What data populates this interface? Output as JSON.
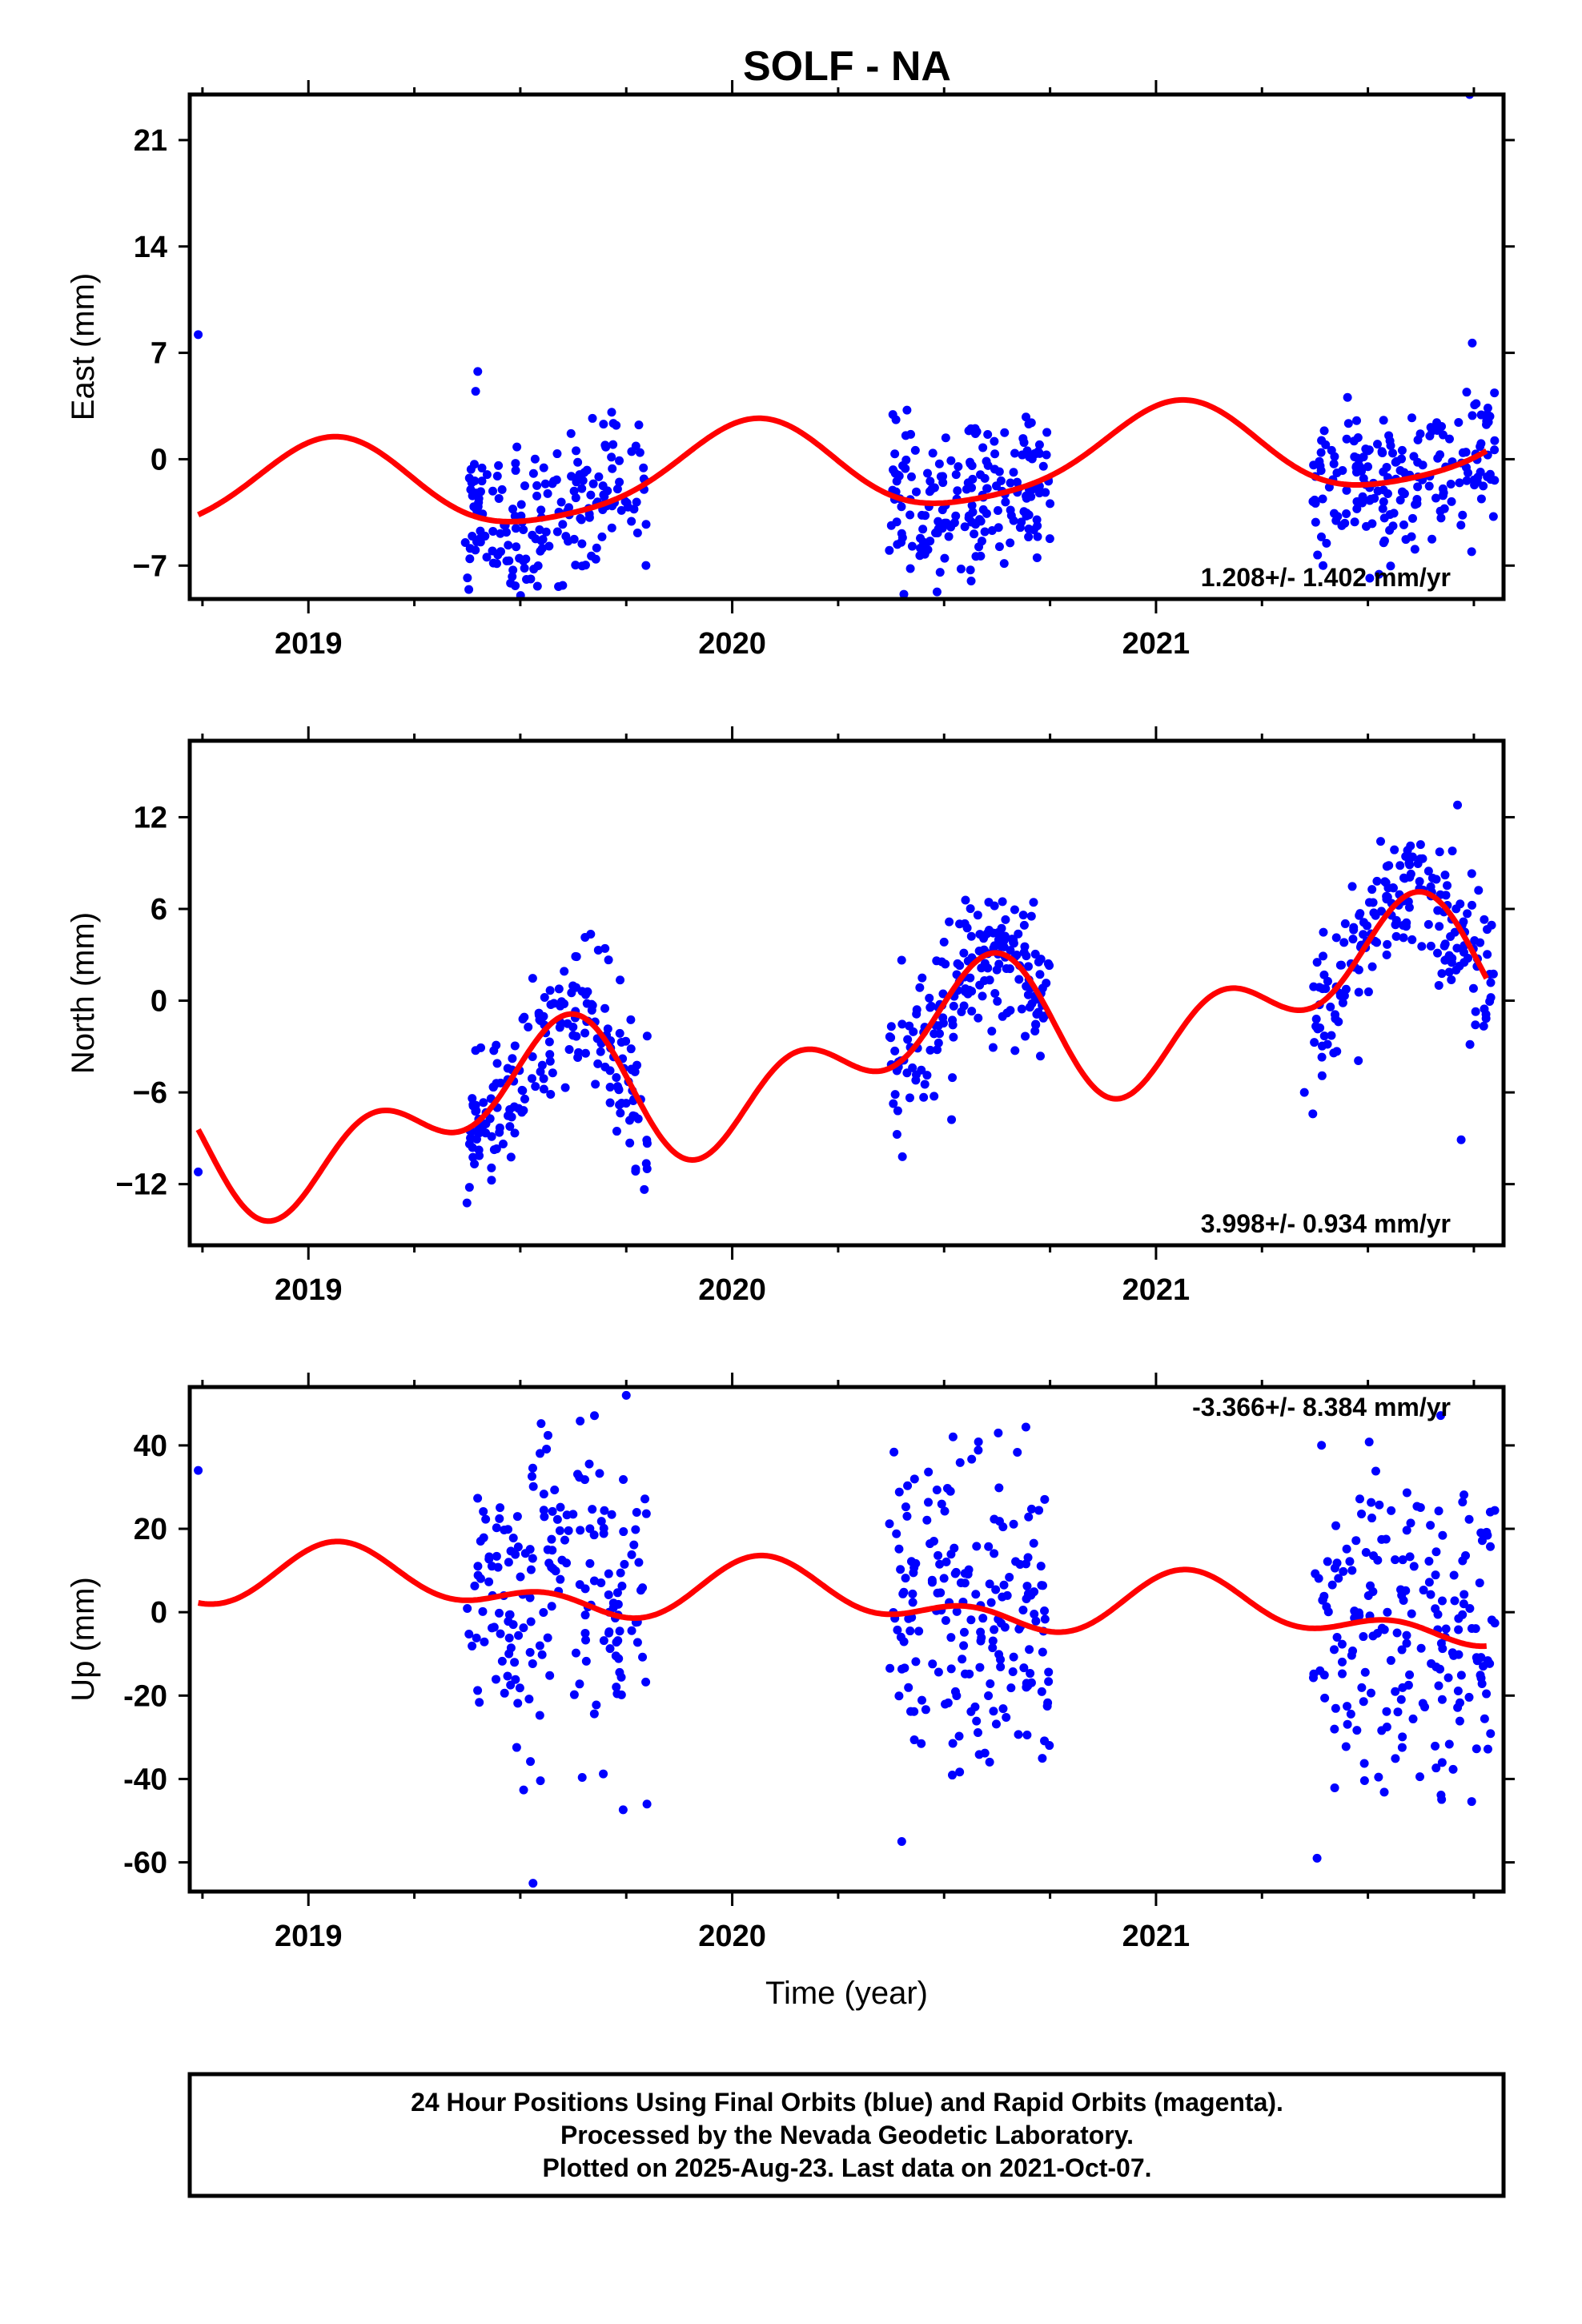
{
  "title": "SOLF - NA",
  "chart_data": [
    {
      "type": "scatter",
      "ylabel": "East (mm)",
      "xlabel": "",
      "xlim": [
        2018.72,
        2021.82
      ],
      "ylim": [
        -9.2,
        24
      ],
      "yticks": [
        -7,
        0,
        7,
        14,
        21
      ],
      "ytick_labels": [
        "−7",
        "0",
        "7",
        "14",
        "21"
      ],
      "xticks": [
        2019,
        2020,
        2021
      ],
      "xtick_labels": [
        "2019",
        "2020",
        "2021"
      ],
      "rate": "1.208+/- 1.402 mm/yr",
      "rate_position": "bottom-right",
      "series": [
        {
          "name": "Final Orbits",
          "color": "#0000ff",
          "style": "points"
        },
        {
          "name": "model",
          "color": "#ff0000",
          "style": "line"
        }
      ],
      "model": {
        "offset": -0.9,
        "rate": 1.208,
        "t0": 2020.0,
        "annual_amp": 3.0,
        "annual_phase": 1.3,
        "semiannual_amp": 0.55,
        "semiannual_phase": 0.6
      },
      "points": {
        "outliers": [
          [
            2018.74,
            8.2
          ],
          [
            2021.74,
            24.0
          ]
        ],
        "windows": [
          [
            2019.37,
            2019.8
          ],
          [
            2020.37,
            2020.75
          ],
          [
            2021.37,
            2021.8
          ]
        ],
        "count_per_window": 190,
        "scatter_mm": 2.7,
        "seed": 11
      }
    },
    {
      "type": "scatter",
      "ylabel": "North (mm)",
      "xlabel": "",
      "xlim": [
        2018.72,
        2021.82
      ],
      "ylim": [
        -16,
        17
      ],
      "yticks": [
        -12,
        -6,
        0,
        6,
        12
      ],
      "ytick_labels": [
        "−12",
        "−6",
        "0",
        "6",
        "12"
      ],
      "xticks": [
        2019,
        2020,
        2021
      ],
      "xtick_labels": [
        "2019",
        "2020",
        "2021"
      ],
      "rate": "3.998+/- 0.934 mm/yr",
      "rate_position": "bottom-right",
      "series": [
        {
          "name": "Final Orbits",
          "color": "#0000ff",
          "style": "points"
        },
        {
          "name": "model",
          "color": "#ff0000",
          "style": "line"
        }
      ],
      "model": {
        "offset": -4.8,
        "rate": 3.998,
        "t0": 2020.0,
        "annual_amp": 3.1,
        "annual_phase": -1.7,
        "semiannual_amp": 3.0,
        "semiannual_phase": -0.15
      },
      "points": {
        "outliers": [
          [
            2018.74,
            -11.2
          ],
          [
            2021.72,
            -9.1
          ],
          [
            2021.35,
            -6.0
          ],
          [
            2021.37,
            -7.4
          ]
        ],
        "windows": [
          [
            2019.37,
            2019.8
          ],
          [
            2020.37,
            2020.75
          ],
          [
            2021.37,
            2021.8
          ]
        ],
        "count_per_window": 190,
        "scatter_mm": 2.3,
        "seed": 23
      }
    },
    {
      "type": "scatter",
      "ylabel": "Up (mm)",
      "xlabel": "Time (year)",
      "xlim": [
        2018.72,
        2021.82
      ],
      "ylim": [
        -67,
        54
      ],
      "yticks": [
        -60,
        -40,
        -20,
        0,
        20,
        40
      ],
      "ytick_labels": [
        "-60",
        "-40",
        "-20",
        "0",
        "20",
        "40"
      ],
      "xticks": [
        2019,
        2020,
        2021
      ],
      "xtick_labels": [
        "2019",
        "2020",
        "2021"
      ],
      "rate": "-3.366+/- 8.384 mm/yr",
      "rate_position": "top-right",
      "series": [
        {
          "name": "Final Orbits",
          "color": "#0000ff",
          "style": "points"
        },
        {
          "name": "model",
          "color": "#ff0000",
          "style": "line"
        }
      ],
      "model": {
        "offset": 4.3,
        "rate": -3.366,
        "t0": 2020.0,
        "annual_amp": 5.5,
        "annual_phase": 0.9,
        "semiannual_amp": 4.2,
        "semiannual_phase": 0.8
      },
      "points": {
        "outliers": [
          [
            2018.74,
            34
          ],
          [
            2019.53,
            -65
          ],
          [
            2019.75,
            52
          ],
          [
            2020.4,
            -55
          ],
          [
            2021.38,
            -59
          ]
        ],
        "windows": [
          [
            2019.37,
            2019.8
          ],
          [
            2020.37,
            2020.75
          ],
          [
            2021.37,
            2021.8
          ]
        ],
        "count_per_window": 190,
        "scatter_mm": 19,
        "seed": 37
      }
    }
  ],
  "footer": {
    "line1": "24 Hour Positions Using Final Orbits (blue) and Rapid Orbits (magenta).",
    "line2": "Processed by the Nevada Geodetic Laboratory.",
    "line3": "Plotted on 2025-Aug-23. Last data on 2021-Oct-07."
  }
}
